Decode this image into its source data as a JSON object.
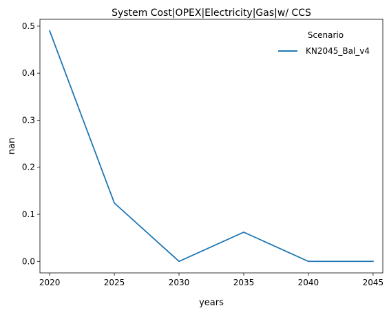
{
  "chart_data": {
    "type": "line",
    "title": "System Cost|OPEX|Electricity|Gas|w/ CCS",
    "xlabel": "years",
    "ylabel": "nan",
    "x": [
      2020,
      2025,
      2030,
      2035,
      2040,
      2045
    ],
    "xticks": [
      2020,
      2025,
      2030,
      2035,
      2040,
      2045
    ],
    "yticks": [
      0.0,
      0.1,
      0.2,
      0.3,
      0.4,
      0.5
    ],
    "ytick_labels": [
      "0.0",
      "0.1",
      "0.2",
      "0.3",
      "0.4",
      "0.5"
    ],
    "xlim": [
      2019.25,
      2045.75
    ],
    "ylim": [
      -0.0245,
      0.5145
    ],
    "grid": false,
    "legend": {
      "title": "Scenario",
      "placement": "top-right"
    },
    "series": [
      {
        "name": "KN2045_Bal_v4",
        "color": "#1f77b4",
        "values": [
          0.49,
          0.124,
          0.0,
          0.062,
          0.0,
          0.0
        ]
      }
    ]
  }
}
